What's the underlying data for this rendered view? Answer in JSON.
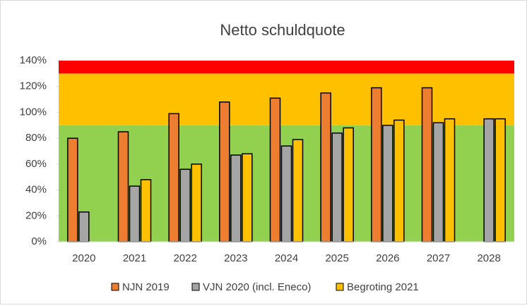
{
  "chart_data": {
    "type": "bar",
    "title": "Netto schuldquote",
    "categories": [
      "2020",
      "2021",
      "2022",
      "2023",
      "2024",
      "2025",
      "2026",
      "2027",
      "2028"
    ],
    "series": [
      {
        "name": "NJN 2019",
        "color": "#ed7d31",
        "values": [
          80,
          85,
          99,
          108,
          111,
          115,
          119,
          119,
          null
        ]
      },
      {
        "name": "VJN 2020 (incl. Eneco)",
        "color": "#a5a5a5",
        "values": [
          23,
          43,
          56,
          67,
          74,
          84,
          90,
          92,
          95
        ]
      },
      {
        "name": "Begroting 2021",
        "color": "#ffc000",
        "values": [
          null,
          48,
          60,
          68,
          79,
          88,
          94,
          95,
          95
        ]
      }
    ],
    "bands": [
      {
        "from": 0,
        "to": 90,
        "color": "#92d050"
      },
      {
        "from": 90,
        "to": 130,
        "color": "#ffc000"
      },
      {
        "from": 130,
        "to": 140,
        "color": "#ff0000"
      }
    ],
    "ylim": [
      0,
      140
    ],
    "yticks": [
      {
        "value": 0,
        "label": "0%"
      },
      {
        "value": 20,
        "label": "20%"
      },
      {
        "value": 40,
        "label": "40%"
      },
      {
        "value": 60,
        "label": "60%"
      },
      {
        "value": 80,
        "label": "80%"
      },
      {
        "value": 100,
        "label": "100%"
      },
      {
        "value": 120,
        "label": "120%"
      },
      {
        "value": 140,
        "label": "140%"
      }
    ],
    "legend": "bottom"
  }
}
